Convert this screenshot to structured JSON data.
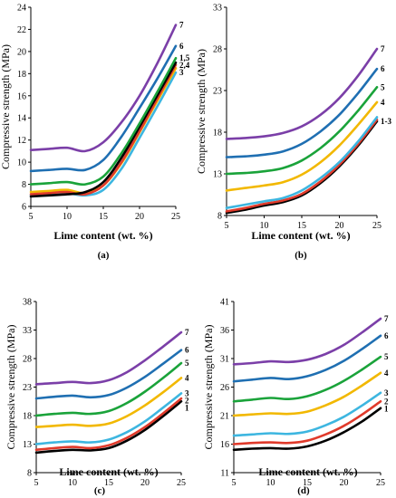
{
  "chart_data": [
    {
      "type": "line",
      "panel_label": "(a)",
      "xlabel": "Lime content (wt. %)",
      "ylabel": "Compressive strength (MPa)",
      "xlim": [
        5,
        25
      ],
      "ylim": [
        6,
        24
      ],
      "xticks": [
        5,
        10,
        15,
        20,
        25
      ],
      "yticks": [
        6,
        8,
        10,
        12,
        14,
        16,
        18,
        20,
        22,
        24
      ],
      "x": [
        5,
        7.5,
        10,
        12.5,
        15,
        17.5,
        20,
        22.5,
        25
      ],
      "series": [
        {
          "name": "7",
          "color": "#7b3fa8",
          "values": [
            11.1,
            11.2,
            11.3,
            11.0,
            11.8,
            13.6,
            16.0,
            19.0,
            22.4
          ]
        },
        {
          "name": "6",
          "color": "#1f6fb2",
          "values": [
            9.2,
            9.3,
            9.4,
            9.3,
            10.2,
            12.3,
            14.9,
            17.6,
            20.5
          ]
        },
        {
          "name": "1,5",
          "color": "#1aa33a",
          "values": [
            8.0,
            8.1,
            8.2,
            8.0,
            8.7,
            10.8,
            13.5,
            16.4,
            19.4
          ]
        },
        {
          "name": "",
          "color": "#000000",
          "values": [
            6.9,
            7.0,
            7.1,
            7.3,
            8.2,
            10.4,
            13.2,
            16.1,
            19.0
          ]
        },
        {
          "name": "2,4",
          "color": "#e03a2b",
          "values": [
            7.1,
            7.2,
            7.3,
            7.1,
            7.9,
            10.0,
            12.8,
            15.8,
            18.8
          ]
        },
        {
          "name": "",
          "color": "#f2b800",
          "values": [
            7.3,
            7.4,
            7.5,
            7.2,
            7.9,
            9.9,
            12.7,
            15.6,
            18.5
          ]
        },
        {
          "name": "3",
          "color": "#3db6e0",
          "values": [
            7.0,
            7.1,
            7.2,
            7.0,
            7.5,
            9.4,
            12.2,
            15.1,
            18.1
          ]
        }
      ]
    },
    {
      "type": "line",
      "panel_label": "(b)",
      "xlabel": "Lime content (wt. %)",
      "ylabel": "Compressive strength (MPa)",
      "xlim": [
        5,
        25
      ],
      "ylim": [
        8,
        33
      ],
      "xticks": [
        5,
        10,
        15,
        20,
        25
      ],
      "yticks": [
        8,
        13,
        18,
        23,
        28,
        33
      ],
      "x": [
        5,
        7.5,
        10,
        12.5,
        15,
        17.5,
        20,
        22.5,
        25
      ],
      "series": [
        {
          "name": "7",
          "color": "#7b3fa8",
          "values": [
            17.2,
            17.3,
            17.5,
            17.9,
            18.7,
            20.1,
            22.1,
            24.8,
            28.0
          ]
        },
        {
          "name": "6",
          "color": "#1f6fb2",
          "values": [
            15.0,
            15.1,
            15.3,
            15.7,
            16.6,
            18.1,
            20.1,
            22.7,
            25.6
          ]
        },
        {
          "name": "5",
          "color": "#1aa33a",
          "values": [
            13.0,
            13.1,
            13.3,
            13.7,
            14.6,
            16.1,
            18.1,
            20.6,
            23.4
          ]
        },
        {
          "name": "4",
          "color": "#f2b800",
          "values": [
            11.0,
            11.3,
            11.6,
            12.0,
            12.9,
            14.4,
            16.4,
            18.9,
            21.6
          ]
        },
        {
          "name": "",
          "color": "#3db6e0",
          "values": [
            8.9,
            9.3,
            9.7,
            10.1,
            11.0,
            12.5,
            14.4,
            16.9,
            19.8
          ]
        },
        {
          "name": "",
          "color": "#e03a2b",
          "values": [
            8.5,
            8.9,
            9.4,
            9.8,
            10.6,
            12.1,
            14.1,
            16.6,
            19.5
          ]
        },
        {
          "name": "1-3",
          "color": "#000000",
          "values": [
            8.3,
            8.7,
            9.2,
            9.6,
            10.4,
            11.9,
            13.9,
            16.4,
            19.3
          ]
        }
      ]
    },
    {
      "type": "line",
      "panel_label": "(c)",
      "xlabel": "Lime content (wt. %)",
      "ylabel": "Compressive strength (MPa)",
      "xlim": [
        5,
        25
      ],
      "ylim": [
        8,
        38
      ],
      "xticks": [
        5,
        10,
        15,
        20,
        25
      ],
      "yticks": [
        8,
        13,
        18,
        23,
        28,
        33,
        38
      ],
      "x": [
        5,
        7.5,
        10,
        12.5,
        15,
        17.5,
        20,
        22.5,
        25
      ],
      "series": [
        {
          "name": "7",
          "color": "#7b3fa8",
          "values": [
            23.5,
            23.7,
            23.9,
            23.7,
            24.2,
            25.6,
            27.7,
            30.1,
            32.6
          ]
        },
        {
          "name": "6",
          "color": "#1f6fb2",
          "values": [
            21.0,
            21.3,
            21.5,
            21.2,
            21.6,
            22.9,
            24.8,
            27.1,
            29.5
          ]
        },
        {
          "name": "5",
          "color": "#1aa33a",
          "values": [
            18.0,
            18.3,
            18.5,
            18.3,
            18.8,
            20.2,
            22.2,
            24.6,
            27.2
          ]
        },
        {
          "name": "4",
          "color": "#f2b800",
          "values": [
            16.0,
            16.2,
            16.4,
            16.2,
            16.6,
            17.9,
            19.8,
            22.1,
            24.6
          ]
        },
        {
          "name": "3",
          "color": "#3db6e0",
          "values": [
            13.0,
            13.3,
            13.5,
            13.3,
            13.8,
            15.1,
            17.0,
            19.4,
            21.9
          ]
        },
        {
          "name": "2",
          "color": "#e03a2b",
          "values": [
            12.0,
            12.3,
            12.5,
            12.3,
            12.8,
            14.1,
            16.0,
            18.4,
            21.0
          ]
        },
        {
          "name": "1",
          "color": "#000000",
          "values": [
            11.5,
            11.8,
            12.0,
            11.9,
            12.3,
            13.6,
            15.5,
            17.9,
            20.5
          ]
        }
      ]
    },
    {
      "type": "line",
      "panel_label": "(d)",
      "xlabel": "Lime content (wt. %)",
      "ylabel": "Compressive strength (MPa)",
      "xlim": [
        5,
        25
      ],
      "ylim": [
        11,
        41
      ],
      "xticks": [
        5,
        10,
        15,
        20,
        25
      ],
      "yticks": [
        11,
        16,
        21,
        26,
        31,
        36,
        41
      ],
      "x": [
        5,
        7.5,
        10,
        12.5,
        15,
        17.5,
        20,
        22.5,
        25
      ],
      "series": [
        {
          "name": "7",
          "color": "#7b3fa8",
          "values": [
            30.0,
            30.2,
            30.5,
            30.4,
            30.8,
            31.8,
            33.4,
            35.6,
            38.0
          ]
        },
        {
          "name": "6",
          "color": "#1f6fb2",
          "values": [
            27.0,
            27.3,
            27.6,
            27.4,
            27.9,
            29.0,
            30.6,
            32.7,
            35.0
          ]
        },
        {
          "name": "5",
          "color": "#1aa33a",
          "values": [
            23.5,
            23.8,
            24.1,
            23.9,
            24.4,
            25.5,
            27.1,
            29.1,
            31.3
          ]
        },
        {
          "name": "4",
          "color": "#f2b800",
          "values": [
            21.0,
            21.2,
            21.4,
            21.3,
            21.7,
            22.8,
            24.3,
            26.3,
            28.5
          ]
        },
        {
          "name": "3",
          "color": "#3db6e0",
          "values": [
            17.5,
            17.7,
            17.9,
            17.8,
            18.2,
            19.3,
            20.8,
            22.8,
            25.0
          ]
        },
        {
          "name": "2",
          "color": "#e03a2b",
          "values": [
            16.0,
            16.2,
            16.3,
            16.2,
            16.6,
            17.7,
            19.2,
            21.2,
            23.5
          ]
        },
        {
          "name": "1",
          "color": "#000000",
          "values": [
            15.0,
            15.2,
            15.3,
            15.2,
            15.6,
            16.6,
            18.1,
            20.0,
            22.3
          ]
        }
      ]
    }
  ]
}
